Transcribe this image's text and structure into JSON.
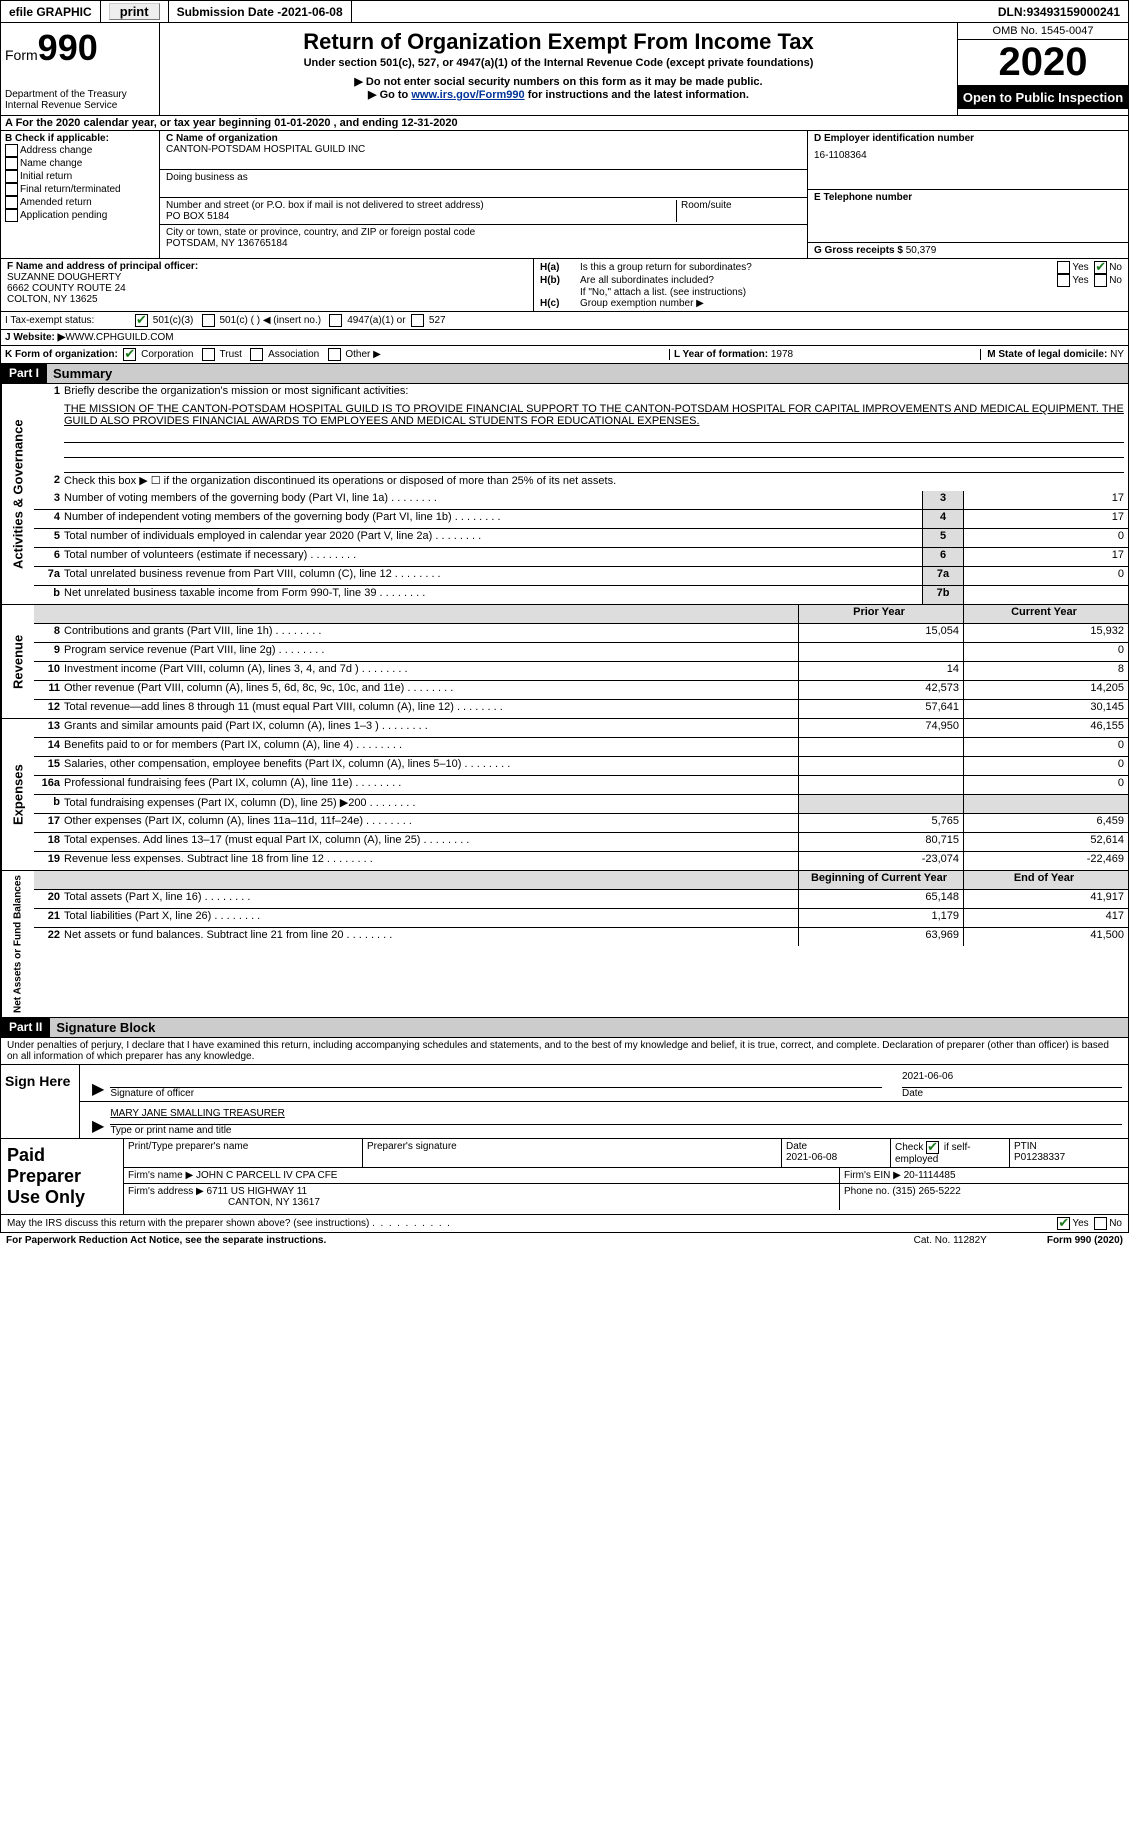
{
  "topbar": {
    "efile_label": "efile GRAPHIC",
    "print_label": "print",
    "submission_label": "Submission Date - ",
    "submission_date": "2021-06-08",
    "dln_label": "DLN: ",
    "dln": "93493159000241"
  },
  "header": {
    "form_prefix": "Form",
    "form_number": "990",
    "dept": "Department of the Treasury",
    "irs": "Internal Revenue Service",
    "title": "Return of Organization Exempt From Income Tax",
    "subtitle": "Under section 501(c), 527, or 4947(a)(1) of the Internal Revenue Code (except private foundations)",
    "note1": "▶ Do not enter social security numbers on this form as it may be made public.",
    "note2_pre": "▶ Go to ",
    "note2_link": "www.irs.gov/Form990",
    "note2_post": " for instructions and the latest information.",
    "omb": "OMB No. 1545-0047",
    "year": "2020",
    "open": "Open to Public Inspection"
  },
  "period": {
    "text_pre": "A For the 2020 calendar year, or tax year beginning ",
    "begin": "01-01-2020",
    "mid": " , and ending ",
    "end": "12-31-2020"
  },
  "box_b": {
    "label": "B Check if applicable:",
    "items": [
      "Address change",
      "Name change",
      "Initial return",
      "Final return/terminated",
      "Amended return",
      "Application pending"
    ]
  },
  "box_c": {
    "name_label": "C Name of organization",
    "name": "CANTON-POTSDAM HOSPITAL GUILD INC",
    "dba_label": "Doing business as",
    "addr_label": "Number and street (or P.O. box if mail is not delivered to street address)",
    "room_label": "Room/suite",
    "addr": "PO BOX 5184",
    "city_label": "City or town, state or province, country, and ZIP or foreign postal code",
    "city": "POTSDAM, NY  136765184"
  },
  "box_d": {
    "label": "D Employer identification number",
    "val": "16-1108364"
  },
  "box_e": {
    "label": "E Telephone number",
    "val": ""
  },
  "box_g": {
    "label": "G Gross receipts $ ",
    "val": "50,379"
  },
  "box_f": {
    "label": "F Name and address of principal officer:",
    "name": "SUZANNE DOUGHERTY",
    "addr1": "6662 COUNTY ROUTE 24",
    "addr2": "COLTON, NY  13625"
  },
  "box_h": {
    "a": "Is this a group return for subordinates?",
    "b": "Are all subordinates included?",
    "note": "If \"No,\" attach a list. (see instructions)",
    "c": "Group exemption number ▶",
    "yes": "Yes",
    "no": "No"
  },
  "box_i": {
    "label": "I    Tax-exempt status:",
    "opts": [
      "501(c)(3)",
      "501(c) (  ) ◀ (insert no.)",
      "4947(a)(1) or",
      "527"
    ]
  },
  "box_j": {
    "label": "J   Website: ▶",
    "val": " WWW.CPHGUILD.COM"
  },
  "box_k": {
    "label": "K Form of organization:",
    "opts": [
      "Corporation",
      "Trust",
      "Association",
      "Other ▶"
    ]
  },
  "box_l": {
    "label": "L Year of formation: ",
    "val": "1978"
  },
  "box_m": {
    "label": "M State of legal domicile: ",
    "val": "NY"
  },
  "part1": {
    "header": "Part I",
    "title": "Summary",
    "sections": {
      "gov": "Activities & Governance",
      "rev": "Revenue",
      "exp": "Expenses",
      "net": "Net Assets or Fund Balances"
    },
    "line1_label": "Briefly describe the organization's mission or most significant activities:",
    "mission": "THE MISSION OF THE CANTON-POTSDAM HOSPITAL GUILD IS TO PROVIDE FINANCIAL SUPPORT TO THE CANTON-POTSDAM HOSPITAL FOR CAPITAL IMPROVEMENTS AND MEDICAL EQUIPMENT. THE GUILD ALSO PROVIDES FINANCIAL AWARDS TO EMPLOYEES AND MEDICAL STUDENTS FOR EDUCATIONAL EXPENSES.",
    "line2": "Check this box ▶ ☐  if the organization discontinued its operations or disposed of more than 25% of its net assets.",
    "gov_lines": [
      {
        "n": "3",
        "d": "Number of voting members of the governing body (Part VI, line 1a)",
        "box": "3",
        "v": "17"
      },
      {
        "n": "4",
        "d": "Number of independent voting members of the governing body (Part VI, line 1b)",
        "box": "4",
        "v": "17"
      },
      {
        "n": "5",
        "d": "Total number of individuals employed in calendar year 2020 (Part V, line 2a)",
        "box": "5",
        "v": "0"
      },
      {
        "n": "6",
        "d": "Total number of volunteers (estimate if necessary)",
        "box": "6",
        "v": "17"
      },
      {
        "n": "7a",
        "d": "Total unrelated business revenue from Part VIII, column (C), line 12",
        "box": "7a",
        "v": "0"
      },
      {
        "n": "b",
        "d": "Net unrelated business taxable income from Form 990-T, line 39",
        "box": "7b",
        "v": ""
      }
    ],
    "col_headers": {
      "prior": "Prior Year",
      "curr": "Current Year",
      "beg": "Beginning of Current Year",
      "end": "End of Year"
    },
    "rev_lines": [
      {
        "n": "8",
        "d": "Contributions and grants (Part VIII, line 1h)",
        "p": "15,054",
        "c": "15,932"
      },
      {
        "n": "9",
        "d": "Program service revenue (Part VIII, line 2g)",
        "p": "",
        "c": "0"
      },
      {
        "n": "10",
        "d": "Investment income (Part VIII, column (A), lines 3, 4, and 7d )",
        "p": "14",
        "c": "8"
      },
      {
        "n": "11",
        "d": "Other revenue (Part VIII, column (A), lines 5, 6d, 8c, 9c, 10c, and 11e)",
        "p": "42,573",
        "c": "14,205"
      },
      {
        "n": "12",
        "d": "Total revenue—add lines 8 through 11 (must equal Part VIII, column (A), line 12)",
        "p": "57,641",
        "c": "30,145"
      }
    ],
    "exp_lines": [
      {
        "n": "13",
        "d": "Grants and similar amounts paid (Part IX, column (A), lines 1–3 )",
        "p": "74,950",
        "c": "46,155"
      },
      {
        "n": "14",
        "d": "Benefits paid to or for members (Part IX, column (A), line 4)",
        "p": "",
        "c": "0"
      },
      {
        "n": "15",
        "d": "Salaries, other compensation, employee benefits (Part IX, column (A), lines 5–10)",
        "p": "",
        "c": "0"
      },
      {
        "n": "16a",
        "d": "Professional fundraising fees (Part IX, column (A), line 11e)",
        "p": "",
        "c": "0"
      },
      {
        "n": "b",
        "d": "Total fundraising expenses (Part IX, column (D), line 25) ▶200",
        "p": "—grey—",
        "c": "—grey—"
      },
      {
        "n": "17",
        "d": "Other expenses (Part IX, column (A), lines 11a–11d, 11f–24e)",
        "p": "5,765",
        "c": "6,459"
      },
      {
        "n": "18",
        "d": "Total expenses. Add lines 13–17 (must equal Part IX, column (A), line 25)",
        "p": "80,715",
        "c": "52,614"
      },
      {
        "n": "19",
        "d": "Revenue less expenses. Subtract line 18 from line 12",
        "p": "-23,074",
        "c": "-22,469"
      }
    ],
    "net_lines": [
      {
        "n": "20",
        "d": "Total assets (Part X, line 16)",
        "p": "65,148",
        "c": "41,917"
      },
      {
        "n": "21",
        "d": "Total liabilities (Part X, line 26)",
        "p": "1,179",
        "c": "417"
      },
      {
        "n": "22",
        "d": "Net assets or fund balances. Subtract line 21 from line 20",
        "p": "63,969",
        "c": "41,500"
      }
    ]
  },
  "part2": {
    "header": "Part II",
    "title": "Signature Block",
    "declaration": "Under penalties of perjury, I declare that I have examined this return, including accompanying schedules and statements, and to the best of my knowledge and belief, it is true, correct, and complete. Declaration of preparer (other than officer) is based on all information of which preparer has any knowledge.",
    "sign_here": "Sign Here",
    "sig_officer": "Signature of officer",
    "date_label": "Date",
    "sig_date": "2021-06-06",
    "name_title": "MARY JANE SMALLING  TREASURER",
    "type_name": "Type or print name and title"
  },
  "prep": {
    "label": "Paid Preparer Use Only",
    "h1": "Print/Type preparer's name",
    "h2": "Preparer's signature",
    "h3": "Date",
    "h4": "Check ☑ if self-employed",
    "h5": "PTIN",
    "date": "2021-06-08",
    "ptin": "P01238337",
    "firm_name_lab": "Firm's name    ▶ ",
    "firm_name": "JOHN C PARCELL IV CPA CFE",
    "firm_ein_lab": "Firm's EIN ▶ ",
    "firm_ein": "20-1114485",
    "firm_addr_lab": "Firm's address ▶ ",
    "firm_addr1": "6711 US HIGHWAY 11",
    "firm_addr2": "CANTON, NY  13617",
    "phone_lab": "Phone no. ",
    "phone": "(315) 265-5222"
  },
  "footer": {
    "discuss": "May the IRS discuss this return with the preparer shown above? (see instructions)",
    "yes": "Yes",
    "no": "No",
    "paperwork": "For Paperwork Reduction Act Notice, see the separate instructions.",
    "cat": "Cat. No. 11282Y",
    "form": "Form 990 (2020)"
  }
}
